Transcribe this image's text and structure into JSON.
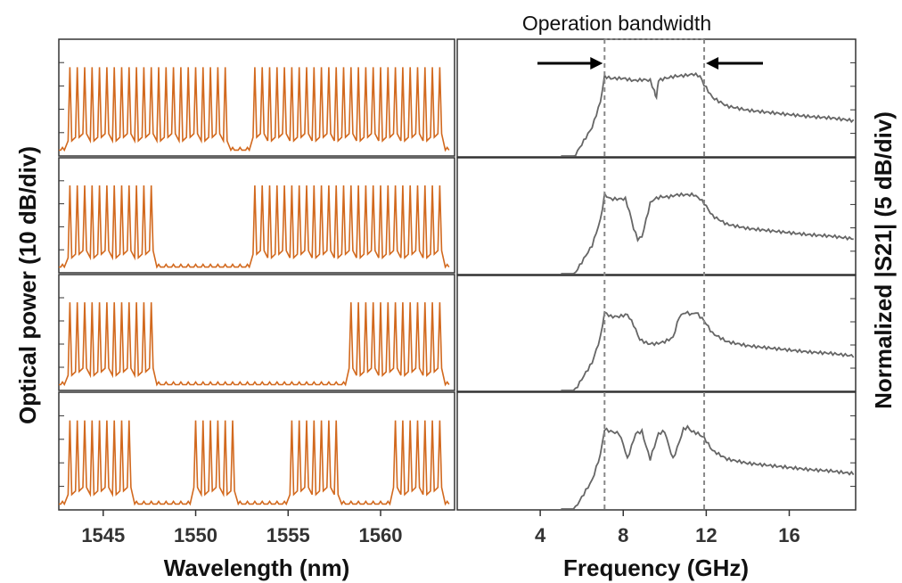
{
  "figure": {
    "annotation": "Operation bandwidth",
    "colors": {
      "spectrum": "#D2691E",
      "response": "#666666",
      "axes": "#333333",
      "marker": "#888888"
    }
  },
  "chart_data": [
    {
      "type": "line",
      "panel": "optical-spectra",
      "xlabel": "Wavelength (nm)",
      "ylabel": "Optical power (10 dB/div)",
      "xlim": [
        1542.6,
        1564.0
      ],
      "xticks": [
        1545,
        1550,
        1555,
        1560
      ],
      "xtick_labels": [
        "1545",
        "1550",
        "1555",
        "1560"
      ],
      "y_unit": "dB",
      "y_divisions": 5,
      "comb_spacing_nm": 0.4,
      "subplots": [
        {
          "on_bands_nm": [
            [
              1543.0,
              1552.0
            ],
            [
              1553.2,
              1563.6
            ]
          ]
        },
        {
          "on_bands_nm": [
            [
              1543.0,
              1548.0
            ],
            [
              1553.0,
              1563.6
            ]
          ]
        },
        {
          "on_bands_nm": [
            [
              1543.0,
              1548.0
            ],
            [
              1558.4,
              1563.6
            ]
          ]
        },
        {
          "on_bands_nm": [
            [
              1543.0,
              1546.8
            ],
            [
              1549.8,
              1552.4
            ],
            [
              1555.2,
              1557.8
            ],
            [
              1560.7,
              1563.6
            ]
          ]
        }
      ]
    },
    {
      "type": "line",
      "panel": "rf-response",
      "xlabel": "Frequency (GHz)",
      "ylabel": "Normalized |S21| (5 dB/div)",
      "xlim": [
        0,
        19.2
      ],
      "xticks": [
        4,
        8,
        12,
        16
      ],
      "xtick_labels": [
        "4",
        "8",
        "12",
        "16"
      ],
      "y_unit": "dB",
      "y_divisions": 5,
      "bandwidth_markers_ghz": [
        7.1,
        11.9
      ],
      "subplots": [
        {
          "x": [
            5.0,
            5.5,
            6.0,
            6.5,
            6.9,
            7.1,
            7.4,
            8.0,
            8.5,
            9.0,
            9.3,
            9.5,
            9.6,
            9.7,
            10.0,
            10.5,
            11.0,
            11.4,
            11.7,
            11.9,
            12.3,
            13,
            14,
            15,
            16,
            17,
            18,
            19.2
          ],
          "y": [
            -26,
            -22,
            -18,
            -14,
            -8,
            -2,
            -2.5,
            -2.5,
            -3,
            -2.8,
            -3,
            -5.5,
            -7,
            -3,
            -2.5,
            -2,
            -1.8,
            -1.5,
            -2,
            -4,
            -7,
            -9,
            -10,
            -10.5,
            -11,
            -11.5,
            -11.8,
            -12.5
          ]
        },
        {
          "x": [
            5.0,
            5.5,
            6.0,
            6.5,
            6.9,
            7.1,
            7.4,
            7.8,
            8.1,
            8.3,
            8.5,
            8.7,
            8.9,
            9.1,
            9.3,
            9.5,
            9.8,
            10.2,
            10.6,
            11.0,
            11.4,
            11.7,
            11.9,
            12.3,
            13,
            14,
            15,
            16,
            17,
            18,
            19.2
          ],
          "y": [
            -26,
            -22,
            -18,
            -14,
            -8,
            -2,
            -3,
            -3,
            -3,
            -6,
            -10,
            -12.5,
            -12,
            -8,
            -4,
            -3,
            -2.5,
            -2.5,
            -2,
            -2,
            -2,
            -3,
            -4,
            -7,
            -9,
            -10,
            -10.5,
            -11,
            -11.5,
            -11.8,
            -12.5
          ]
        },
        {
          "x": [
            5.0,
            5.5,
            6.0,
            6.5,
            6.9,
            7.1,
            7.4,
            7.8,
            8.2,
            8.5,
            8.8,
            9.2,
            9.6,
            10.0,
            10.4,
            10.7,
            11.0,
            11.3,
            11.5,
            11.7,
            11.9,
            12.3,
            13,
            14,
            15,
            16,
            17,
            18,
            19.2
          ],
          "y": [
            -26,
            -22,
            -18,
            -14,
            -8,
            -2,
            -3,
            -3,
            -2.5,
            -5,
            -8.5,
            -9.5,
            -9.5,
            -9,
            -8,
            -3,
            -2,
            -2.5,
            -2,
            -3,
            -4,
            -7,
            -9,
            -10,
            -10.5,
            -11,
            -11.5,
            -11.8,
            -12.5
          ]
        },
        {
          "x": [
            5.0,
            5.5,
            6.0,
            6.5,
            6.9,
            7.1,
            7.4,
            7.8,
            8.0,
            8.2,
            8.4,
            8.6,
            8.9,
            9.1,
            9.3,
            9.5,
            9.7,
            10.0,
            10.2,
            10.4,
            10.7,
            10.9,
            11.1,
            11.3,
            11.6,
            11.9,
            12.3,
            13,
            14,
            15,
            16,
            17,
            18,
            19.2
          ],
          "y": [
            -26,
            -22,
            -18,
            -14,
            -8,
            -2,
            -2.5,
            -3,
            -5.5,
            -9,
            -6,
            -3,
            -2.5,
            -6,
            -9,
            -6,
            -3,
            -2.5,
            -6,
            -9,
            -5,
            -2,
            -1.5,
            -2.5,
            -3,
            -4,
            -7,
            -9,
            -10,
            -10.5,
            -11,
            -11.5,
            -11.8,
            -12.5
          ]
        }
      ]
    }
  ]
}
